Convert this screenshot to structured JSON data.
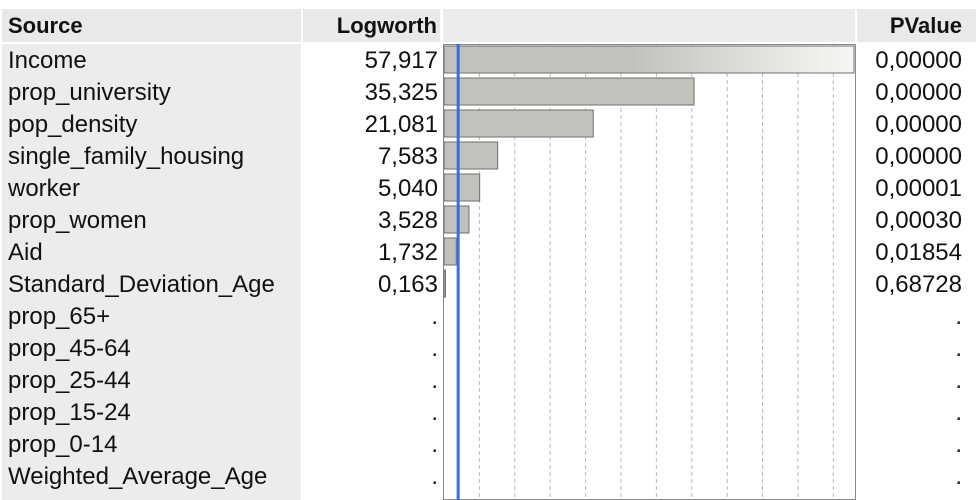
{
  "header": {
    "source": "Source",
    "logworth": "Logworth",
    "pvalue": "PValue"
  },
  "rows": [
    {
      "source": "Income",
      "logworth": "57,917",
      "pvalue": "0,00000"
    },
    {
      "source": "prop_university",
      "logworth": "35,325",
      "pvalue": "0,00000"
    },
    {
      "source": "pop_density",
      "logworth": "21,081",
      "pvalue": "0,00000"
    },
    {
      "source": "single_family_housing",
      "logworth": "7,583",
      "pvalue": "0,00000"
    },
    {
      "source": "worker",
      "logworth": "5,040",
      "pvalue": "0,00001"
    },
    {
      "source": "prop_women",
      "logworth": "3,528",
      "pvalue": "0,00030"
    },
    {
      "source": "Aid",
      "logworth": "1,732",
      "pvalue": "0,01854"
    },
    {
      "source": "Standard_Deviation_Age",
      "logworth": "0,163",
      "pvalue": "0,68728"
    },
    {
      "source": "prop_65+",
      "logworth": ".",
      "pvalue": "."
    },
    {
      "source": "prop_45-64",
      "logworth": ".",
      "pvalue": "."
    },
    {
      "source": "prop_25-44",
      "logworth": ".",
      "pvalue": "."
    },
    {
      "source": "prop_15-24",
      "logworth": ".",
      "pvalue": "."
    },
    {
      "source": "prop_0-14",
      "logworth": ".",
      "pvalue": "."
    },
    {
      "source": "Weighted_Average_Age",
      "logworth": ".",
      "pvalue": "."
    }
  ],
  "chart_data": {
    "type": "bar",
    "orientation": "horizontal",
    "categories": [
      "Income",
      "prop_university",
      "pop_density",
      "single_family_housing",
      "worker",
      "prop_women",
      "Aid",
      "Standard_Deviation_Age"
    ],
    "values": [
      57.917,
      35.325,
      21.081,
      7.583,
      5.04,
      3.528,
      1.732,
      0.163
    ],
    "xlim": [
      0,
      57.917
    ],
    "reference_line": 2,
    "grid": true,
    "bar_color": "#c2c2bd",
    "bar_outline": "#6f6f6a",
    "reference_line_color": "#3a6ee0"
  }
}
